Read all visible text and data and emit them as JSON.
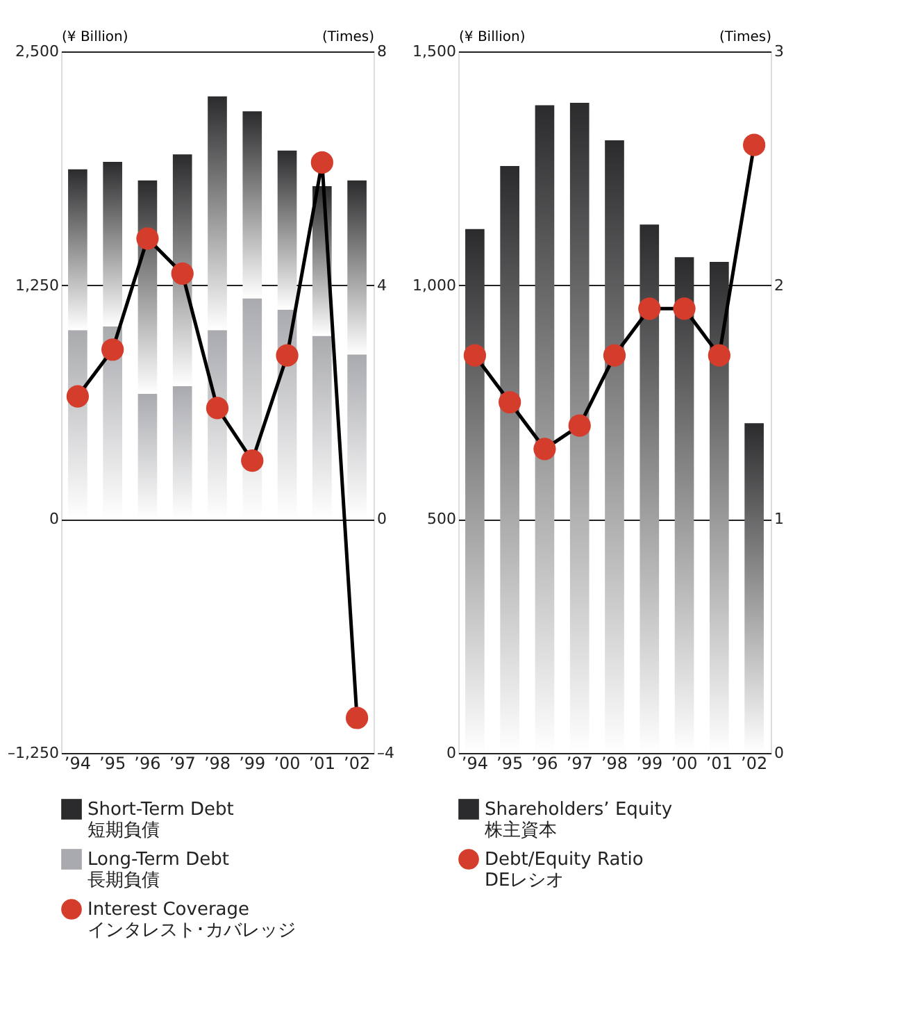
{
  "chart_data": [
    {
      "type": "bar",
      "stacked": true,
      "categories": [
        "’94",
        "’95",
        "’96",
        "’97",
        "’98",
        "’99",
        "’00",
        "’01",
        "’02"
      ],
      "ylabel": "(¥ Billion)",
      "y2label": "(Times)",
      "ylim": [
        -1250,
        2500
      ],
      "yticks": [
        {
          "value": -1250,
          "label": "–1,250"
        },
        0,
        {
          "value": 1250,
          "label": "1,250"
        },
        {
          "value": 2500,
          "label": "2,500"
        }
      ],
      "y2lim": [
        -4,
        8
      ],
      "y2ticks": [
        {
          "value": -4,
          "label": "–4"
        },
        0,
        4,
        8
      ],
      "grid": "y",
      "legend": "bottom",
      "series": [
        {
          "name": "Long-Term Debt\n長期負債",
          "color": "#a9aaae",
          "values": [
            1010,
            1030,
            670,
            710,
            1010,
            1180,
            1120,
            980,
            880
          ]
        },
        {
          "name": "Short-Term Debt\n短期負債",
          "color": "#2b2b2d",
          "values": [
            860,
            880,
            1140,
            1240,
            1250,
            1000,
            850,
            800,
            930
          ]
        },
        {
          "name": "Interest Coverage\nインタレスト･カバレッジ",
          "type": "line",
          "axis": "y2",
          "color": "#d43c2c",
          "marker": "circle",
          "line_style": "solid",
          "values": [
            2.1,
            2.9,
            4.8,
            4.2,
            1.9,
            1.0,
            2.8,
            6.1,
            -3.4
          ]
        }
      ]
    },
    {
      "type": "bar",
      "categories": [
        "’94",
        "’95",
        "’96",
        "’97",
        "’98",
        "’99",
        "’00",
        "’01",
        "’02"
      ],
      "ylabel": "(¥ Billion)",
      "y2label": "(Times)",
      "ylim": [
        0,
        1500
      ],
      "yticks": [
        0,
        500,
        {
          "value": 1000,
          "label": "1,000"
        },
        {
          "value": 1500,
          "label": "1,500"
        }
      ],
      "y2lim": [
        0,
        3
      ],
      "y2ticks": [
        0,
        1,
        2,
        3
      ],
      "grid": "y",
      "legend": "bottom",
      "series": [
        {
          "name": "Shareholders’ Equity\n株主資本",
          "color": "#2b2b2d",
          "values": [
            1120,
            1255,
            1385,
            1390,
            1310,
            1130,
            1060,
            1050,
            705
          ]
        },
        {
          "name": "Debt/Equity Ratio\nDEレシオ",
          "type": "line",
          "axis": "y2",
          "color": "#d43c2c",
          "marker": "circle",
          "line_style": "solid",
          "values": [
            1.7,
            1.5,
            1.3,
            1.4,
            1.7,
            1.9,
            1.9,
            1.7,
            2.6
          ]
        }
      ]
    }
  ]
}
